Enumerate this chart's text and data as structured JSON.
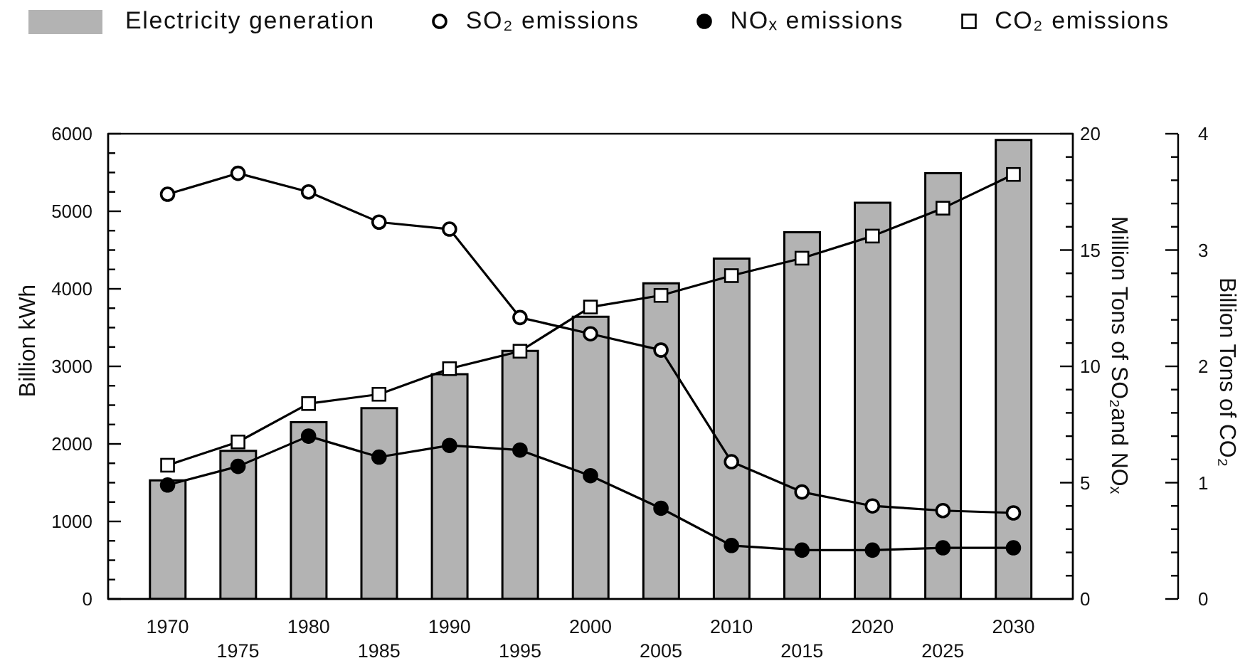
{
  "chart_data": {
    "type": "bar",
    "categories": [
      "1970",
      "1975",
      "1980",
      "1985",
      "1990",
      "1995",
      "2000",
      "2005",
      "2010",
      "2015",
      "2020",
      "2025",
      "2030"
    ],
    "series": [
      {
        "name": "Electricity generation",
        "color": "#b3b3b3",
        "values": [
          1530,
          1910,
          2280,
          2460,
          2900,
          3200,
          3640,
          4070,
          4390,
          4730,
          5110,
          5490,
          5920
        ]
      },
      {
        "name": "SO₂ emissions",
        "type": "line",
        "axis": "y2",
        "marker": "circle",
        "color": "#ffffff",
        "values": [
          17.4,
          18.3,
          17.5,
          16.2,
          15.9,
          12.1,
          11.4,
          10.7,
          5.9,
          4.6,
          4.0,
          3.8,
          3.7
        ]
      },
      {
        "name": "NOₓ emissions",
        "type": "line",
        "axis": "y2",
        "marker": "circle",
        "color": "#000000",
        "values": [
          4.9,
          5.7,
          7.0,
          6.1,
          6.6,
          6.4,
          5.3,
          3.9,
          2.3,
          2.1,
          2.1,
          2.2,
          2.2
        ]
      },
      {
        "name": "CO₂ emissions",
        "type": "line",
        "axis": "y3",
        "marker": "square",
        "color": "#ffffff",
        "values": [
          1.15,
          1.35,
          1.68,
          1.76,
          1.98,
          2.13,
          2.51,
          2.61,
          2.78,
          2.93,
          3.12,
          3.36,
          3.65
        ]
      }
    ],
    "ylabel": "Billion kWh",
    "y2label": "Million Tons of SO₂and NOₓ",
    "y3label": "Billion Tons of CO₂",
    "ylim": [
      0,
      6000
    ],
    "yticks": [
      0,
      {
        "value": 250,
        "label": null
      },
      {
        "value": 500,
        "label": null
      },
      {
        "value": 750,
        "label": null
      },
      1000,
      {
        "value": 1250,
        "label": null
      },
      {
        "value": 1500,
        "label": null
      },
      {
        "value": 1750,
        "label": null
      },
      2000,
      {
        "value": 2250,
        "label": null
      },
      {
        "value": 2500,
        "label": null
      },
      {
        "value": 2750,
        "label": null
      },
      3000,
      {
        "value": 3250,
        "label": null
      },
      {
        "value": 3500,
        "label": null
      },
      {
        "value": 3750,
        "label": null
      },
      4000,
      {
        "value": 4250,
        "label": null
      },
      {
        "value": 4500,
        "label": null
      },
      {
        "value": 4750,
        "label": null
      },
      5000,
      {
        "value": 5250,
        "label": null
      },
      {
        "value": 5500,
        "label": null
      },
      {
        "value": 5750,
        "label": null
      },
      6000
    ],
    "y2lim": [
      0,
      20
    ],
    "y2ticks": [
      0,
      {
        "value": 1,
        "label": null
      },
      {
        "value": 2,
        "label": null
      },
      {
        "value": 3,
        "label": null
      },
      {
        "value": 4,
        "label": null
      },
      5,
      {
        "value": 6,
        "label": null
      },
      {
        "value": 7,
        "label": null
      },
      {
        "value": 8,
        "label": null
      },
      {
        "value": 9,
        "label": null
      },
      10,
      {
        "value": 11,
        "label": null
      },
      {
        "value": 12,
        "label": null
      },
      {
        "value": 13,
        "label": null
      },
      {
        "value": 14,
        "label": null
      },
      15,
      {
        "value": 16,
        "label": null
      },
      {
        "value": 17,
        "label": null
      },
      {
        "value": 18,
        "label": null
      },
      {
        "value": 19,
        "label": null
      },
      20
    ],
    "y3lim": [
      0,
      4
    ],
    "y3ticks": [
      0,
      {
        "value": 0.2,
        "label": null
      },
      {
        "value": 0.4,
        "label": null
      },
      {
        "value": 0.6,
        "label": null
      },
      {
        "value": 0.8,
        "label": null
      },
      1,
      {
        "value": 1.2,
        "label": null
      },
      {
        "value": 1.4,
        "label": null
      },
      {
        "value": 1.6,
        "label": null
      },
      {
        "value": 1.8,
        "label": null
      },
      2,
      {
        "value": 2.2,
        "label": null
      },
      {
        "value": 2.4,
        "label": null
      },
      {
        "value": 2.6,
        "label": null
      },
      {
        "value": 2.8,
        "label": null
      },
      3,
      {
        "value": 3.2,
        "label": null
      },
      {
        "value": 3.4,
        "label": null
      },
      {
        "value": 3.6,
        "label": null
      },
      {
        "value": 3.8,
        "label": null
      },
      4
    ],
    "legend": "top"
  }
}
